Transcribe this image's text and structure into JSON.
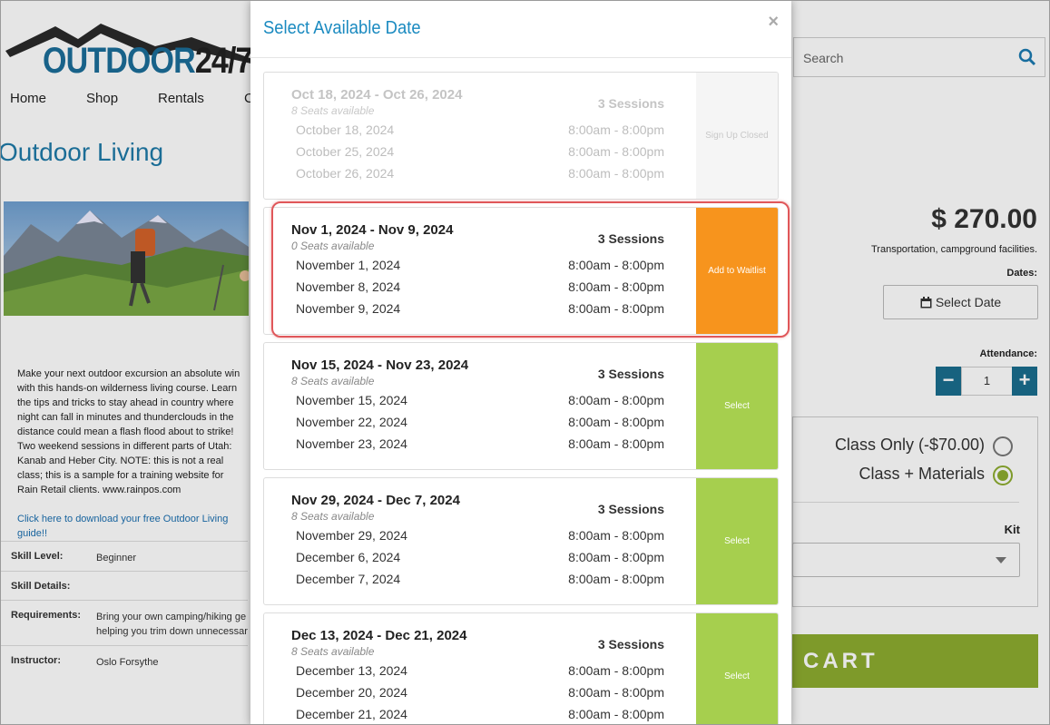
{
  "header": {
    "logo_main": "OUTDOOR",
    "logo_sub": "24/7",
    "nav": [
      "Home",
      "Shop",
      "Rentals",
      "C"
    ],
    "search_placeholder": "Search"
  },
  "product": {
    "title": "Outdoor Living",
    "description": "Make your next outdoor excursion an absolute win with this hands-on wilderness living course. Learn the tips and tricks to stay ahead in country where night can fall in minutes and thunderclouds in the distance could mean a flash flood about to strike! Two weekend sessions in different parts of Utah: Kanab and Heber City. NOTE: this is not a real class; this is a sample for a training website for Rain Retail clients. www.rainpos.com",
    "guide_link": "Click here to download your free Outdoor Living guide!!",
    "details": [
      {
        "label": "Skill Level:",
        "lines": [
          "Beginner"
        ]
      },
      {
        "label": "Skill Details:"
      },
      {
        "label": "Requirements:",
        "lines": [
          "Bring your own camping/hiking ge",
          "helping you trim down unnecessar"
        ]
      },
      {
        "label": "Instructor:",
        "lines": [
          "Oslo Forsythe"
        ]
      }
    ],
    "price": "$ 270.00",
    "price_note": "Transportation, campground facilities.",
    "dates_label": "Dates:",
    "select_date_button": "Select Date",
    "attendance_label": "Attendance:",
    "quantity": 1,
    "options": [
      {
        "label": "Class Only (-$70.00)",
        "selected": false
      },
      {
        "label": "Class + Materials",
        "selected": true
      }
    ],
    "kit_label": "Kit",
    "cart_button": "CART"
  },
  "modal": {
    "title": "Select Available Date",
    "close": "×",
    "sessions": [
      {
        "range": "Oct 18, 2024 - Oct 26, 2024",
        "seats": "8 Seats available",
        "count": "3 Sessions",
        "dates": [
          {
            "date": "October 18, 2024",
            "time": "8:00am - 8:00pm"
          },
          {
            "date": "October 25, 2024",
            "time": "8:00am - 8:00pm"
          },
          {
            "date": "October 26, 2024",
            "time": "8:00am - 8:00pm"
          }
        ],
        "action": "Sign Up Closed",
        "state": "closed",
        "highlighted": false
      },
      {
        "range": "Nov 1, 2024 - Nov 9, 2024",
        "seats": "0 Seats available",
        "count": "3 Sessions",
        "dates": [
          {
            "date": "November 1, 2024",
            "time": "8:00am - 8:00pm"
          },
          {
            "date": "November 8, 2024",
            "time": "8:00am - 8:00pm"
          },
          {
            "date": "November 9, 2024",
            "time": "8:00am - 8:00pm"
          }
        ],
        "action": "Add to Waitlist",
        "state": "waitlist",
        "highlighted": true
      },
      {
        "range": "Nov 15, 2024 - Nov 23, 2024",
        "seats": "8 Seats available",
        "count": "3 Sessions",
        "dates": [
          {
            "date": "November 15, 2024",
            "time": "8:00am - 8:00pm"
          },
          {
            "date": "November 22, 2024",
            "time": "8:00am - 8:00pm"
          },
          {
            "date": "November 23, 2024",
            "time": "8:00am - 8:00pm"
          }
        ],
        "action": "Select",
        "state": "open",
        "highlighted": false
      },
      {
        "range": "Nov 29, 2024 - Dec 7, 2024",
        "seats": "8 Seats available",
        "count": "3 Sessions",
        "dates": [
          {
            "date": "November 29, 2024",
            "time": "8:00am - 8:00pm"
          },
          {
            "date": "December 6, 2024",
            "time": "8:00am - 8:00pm"
          },
          {
            "date": "December 7, 2024",
            "time": "8:00am - 8:00pm"
          }
        ],
        "action": "Select",
        "state": "open",
        "highlighted": false
      },
      {
        "range": "Dec 13, 2024 - Dec 21, 2024",
        "seats": "8 Seats available",
        "count": "3 Sessions",
        "dates": [
          {
            "date": "December 13, 2024",
            "time": "8:00am - 8:00pm"
          },
          {
            "date": "December 20, 2024",
            "time": "8:00am - 8:00pm"
          },
          {
            "date": "December 21, 2024",
            "time": "8:00am - 8:00pm"
          }
        ],
        "action": "Select",
        "state": "open",
        "highlighted": false
      }
    ]
  }
}
